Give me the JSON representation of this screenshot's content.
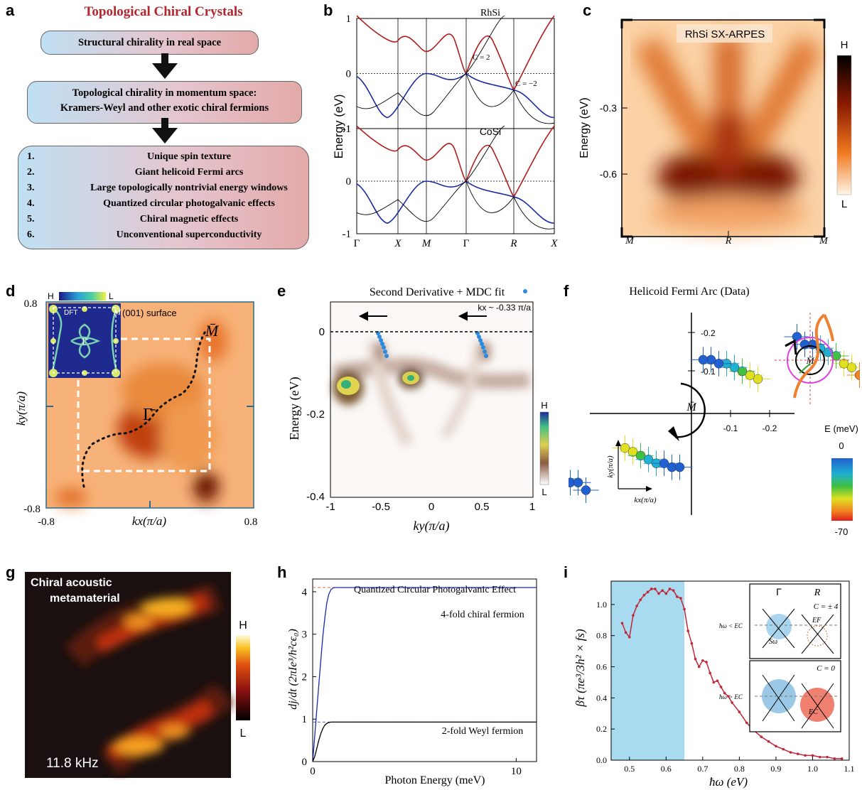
{
  "panel_labels": {
    "a": "a",
    "b": "b",
    "c": "c",
    "d": "d",
    "e": "e",
    "f": "f",
    "g": "g",
    "h": "h",
    "i": "i"
  },
  "panel_a": {
    "title": "Topological Chiral Crystals",
    "box1": "Structural chirality in real space",
    "box2_line1": "Topological chirality in momentum space:",
    "box2_line2": "Kramers-Weyl and other exotic chiral fermions",
    "list": [
      {
        "num": "1.",
        "text": "Unique spin texture"
      },
      {
        "num": "2.",
        "text": "Giant helicoid Fermi arcs"
      },
      {
        "num": "3.",
        "text": "Large topologically nontrivial energy windows"
      },
      {
        "num": "4.",
        "text": "Quantized circular photogalvanic effects"
      },
      {
        "num": "5.",
        "text": "Chiral magnetic effects"
      },
      {
        "num": "6.",
        "text": "Unconventional superconductivity"
      }
    ],
    "colors": {
      "title": "#b3262d",
      "box_left": "#bfe0f3",
      "box_right": "#e3a9a9"
    }
  },
  "panel_b": {
    "top_title": "RhSi",
    "bottom_title": "CoSi",
    "ylabel": "Energy (eV)",
    "yticks_top": [
      "1",
      "0",
      "-1"
    ],
    "yticks_bottom": [
      "1",
      "0",
      "-1"
    ],
    "kpoints": [
      "Γ",
      "X",
      "M",
      "Γ",
      "R",
      "X"
    ],
    "annot_gamma": "C = 2",
    "annot_r": "C = −2",
    "colors": {
      "conduction": "#b01c1c",
      "valence": "#1a2aa0",
      "other": "#000000"
    }
  },
  "panel_c": {
    "title": "RhSi SX-ARPES",
    "ylabel": "Energy (eV)",
    "yticks": [
      "-0.3",
      "-0.6"
    ],
    "xticks": [
      "M",
      "R",
      "M"
    ],
    "cbar_high": "H",
    "cbar_low": "L"
  },
  "panel_d": {
    "inset_high": "H",
    "inset_low": "L",
    "inset_dft": "DFT",
    "inset_surface": "(001) surface",
    "inset_mbar": "M̄",
    "inset_gamma": "Γ̄",
    "gamma_label": "Γ̄",
    "mbar_label": "M̄",
    "ylabel": "ky(π/a)",
    "xlabel": "kx(π/a)",
    "ytick_top": "0.8",
    "ytick_bottom": "-0.8",
    "xtick_left": "-0.8",
    "xtick_right": "0.8"
  },
  "panel_e": {
    "title": "Second Derivative + MDC fit",
    "kx_label": "kx ~ -0.33 π/a",
    "ylabel": "Energy (eV)",
    "xlabel": "ky(π/a)",
    "yticks": [
      "0",
      "-0.2",
      "-0.4"
    ],
    "xticks": [
      "-1",
      "-0.5",
      "0",
      "0.5",
      "1"
    ],
    "cbar_high": "H",
    "cbar_low": "L"
  },
  "panel_f": {
    "title": "Helicoid Fermi Arc (Data)",
    "center_label": "M̄",
    "circle_label": "M̄",
    "yticks": [
      "-0.2",
      "-0.1"
    ],
    "xticks": [
      "-0.1",
      "-0.2"
    ],
    "axis_ky": "ky(π/a)",
    "axis_kx": "kx(π/a)",
    "cbar_title": "E (meV)",
    "cbar_top": "0",
    "cbar_bottom": "-70"
  },
  "panel_g": {
    "title_line1": "Chiral acoustic",
    "title_line2": "metamaterial",
    "freq": "11.8 kHz",
    "cbar_high": "H",
    "cbar_low": "L"
  },
  "panel_h": {
    "title": "Quantized Circular Photogalvanic Effect",
    "ylabel": "dj/dt (2πIe³/h²cϵ₀)",
    "xlabel": "Photon Energy (meV)",
    "series_top": "4-fold chiral fermion",
    "series_bottom": "2-fold Weyl fermion",
    "yticks": [
      "0",
      "1",
      "2",
      "3",
      "4"
    ],
    "xticks": [
      "0",
      "10"
    ]
  },
  "panel_i": {
    "ylabel": "βτ (πe³/3h² × fs)",
    "xlabel": "ħω (eV)",
    "yticks": [
      "0.0",
      "0.2",
      "0.4",
      "0.6",
      "0.8",
      "1.0"
    ],
    "xticks": [
      "0.5",
      "0.6",
      "0.7",
      "0.8",
      "0.9",
      "1.0",
      "1.1"
    ],
    "inset_gamma": "Γ",
    "inset_r": "R",
    "inset_c4": "C = ± 4",
    "inset_c0": "C = 0",
    "inset_lt": "ħω < EC",
    "inset_gt": "ħω > EC",
    "inset_ef": "EF",
    "inset_sw": "Sω",
    "inset_ec": "EC",
    "colors": {
      "line": "#c0283a",
      "band": "#a8dbf0"
    }
  },
  "chart_data": [
    {
      "type": "line",
      "panel": "h",
      "title": "Quantized Circular Photogalvanic Effect",
      "xlabel": "Photon Energy (meV)",
      "ylabel": "dj/dt (2πIe³/h²cϵ₀)",
      "xlim": [
        0,
        11
      ],
      "ylim": [
        0,
        4.3
      ],
      "series": [
        {
          "name": "4-fold chiral fermion",
          "x": [
            0,
            0.1,
            0.2,
            0.3,
            0.4,
            0.5,
            0.6,
            0.7,
            0.8,
            0.9,
            1.0,
            1.1,
            1.2,
            1.4,
            2,
            4,
            6,
            8,
            10,
            11
          ],
          "values": [
            0,
            0.6,
            1.2,
            1.8,
            2.4,
            2.95,
            3.4,
            3.75,
            3.95,
            4.05,
            4.09,
            4.1,
            4.1,
            4.1,
            4.1,
            4.1,
            4.1,
            4.1,
            4.1,
            4.1
          ]
        },
        {
          "name": "2-fold Weyl fermion",
          "x": [
            0,
            0.1,
            0.2,
            0.3,
            0.4,
            0.5,
            0.6,
            0.7,
            0.8,
            0.9,
            1.0,
            1.2,
            1.5,
            2,
            4,
            6,
            8,
            10,
            11
          ],
          "values": [
            0,
            0.12,
            0.3,
            0.5,
            0.66,
            0.78,
            0.86,
            0.9,
            0.92,
            0.93,
            0.93,
            0.93,
            0.93,
            0.93,
            0.93,
            0.93,
            0.93,
            0.93,
            0.93
          ]
        }
      ],
      "reference_lines": [
        4,
        1
      ]
    },
    {
      "type": "line",
      "panel": "i",
      "xlabel": "ħω (eV)",
      "ylabel": "βτ (πe³/3h² × fs)",
      "xlim": [
        0.45,
        1.1
      ],
      "ylim": [
        0,
        1.15
      ],
      "shaded_x_range": [
        0.45,
        0.65
      ],
      "series": [
        {
          "name": "",
          "x": [
            0.48,
            0.49,
            0.5,
            0.51,
            0.52,
            0.53,
            0.54,
            0.55,
            0.56,
            0.57,
            0.58,
            0.59,
            0.6,
            0.61,
            0.62,
            0.63,
            0.64,
            0.65,
            0.66,
            0.67,
            0.68,
            0.69,
            0.7,
            0.71,
            0.72,
            0.73,
            0.74,
            0.75,
            0.76,
            0.77,
            0.78,
            0.8,
            0.82,
            0.84,
            0.86,
            0.88,
            0.9,
            0.92,
            0.94,
            0.96,
            0.98,
            1.0,
            1.02,
            1.04,
            1.06,
            1.08
          ],
          "values": [
            0.88,
            0.82,
            0.79,
            0.93,
            0.99,
            1.03,
            1.06,
            1.08,
            1.1,
            1.1,
            1.07,
            1.09,
            1.07,
            1.1,
            1.09,
            1.05,
            1.04,
            0.97,
            0.83,
            0.75,
            0.65,
            0.6,
            0.64,
            0.63,
            0.56,
            0.5,
            0.51,
            0.47,
            0.43,
            0.41,
            0.37,
            0.31,
            0.24,
            0.19,
            0.15,
            0.12,
            0.09,
            0.07,
            0.05,
            0.04,
            0.03,
            0.03,
            0.02,
            0.02,
            0.01,
            0.01
          ]
        }
      ]
    },
    {
      "type": "scatter",
      "panel": "f",
      "title": "Helicoid Fermi Arc (Data)",
      "xlabel": "kx(π/a)",
      "ylabel": "ky(π/a)",
      "color_scale": {
        "title": "E (meV)",
        "min": -70,
        "max": 0
      },
      "series": [
        {
          "name": "",
          "x": [
            -0.43,
            -0.41,
            -0.39,
            -0.37,
            -0.35,
            -0.33,
            -0.31,
            -0.29,
            -0.27
          ],
          "values": [
            -0.1,
            -0.12,
            -0.13,
            -0.15,
            -0.16,
            -0.17,
            -0.18,
            -0.18,
            -0.2
          ],
          "energy": [
            -70,
            -60,
            -50,
            -40,
            -30,
            -20,
            -15,
            -10,
            0
          ]
        },
        {
          "name": "",
          "x": [
            -0.17,
            -0.15,
            -0.13,
            -0.11,
            -0.09,
            -0.07,
            -0.05,
            -0.03
          ],
          "values": [
            -0.09,
            -0.1,
            -0.11,
            -0.12,
            -0.13,
            -0.13,
            -0.14,
            -0.14
          ],
          "energy": [
            -60,
            -50,
            -40,
            -30,
            -20,
            -15,
            -10,
            0
          ]
        }
      ]
    }
  ]
}
